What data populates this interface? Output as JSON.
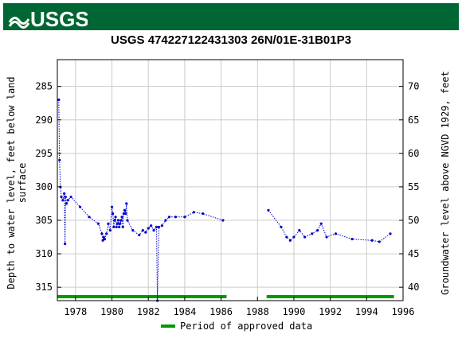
{
  "header": {
    "logo_text": "USGS",
    "banner_color": "#006633"
  },
  "chart_data": {
    "type": "scatter",
    "title": "USGS 474227122431303 26N/01E-31B01P3",
    "ylabel_left_line1": "Depth to water level, feet below land",
    "ylabel_left_line2": "surface",
    "ylabel_right": "Groundwater level above NGVD 1929, feet",
    "xlim": [
      1977.0,
      1996.0
    ],
    "ylim_left": [
      281.0,
      317.0
    ],
    "ylim_right": [
      74.0,
      38.0
    ],
    "x_ticks": [
      "1978",
      "1980",
      "1982",
      "1984",
      "1986",
      "1988",
      "1990",
      "1992",
      "1994",
      "1996"
    ],
    "y_ticks_left": [
      "285",
      "290",
      "295",
      "300",
      "305",
      "310",
      "315"
    ],
    "y_ticks_right": [
      "70",
      "65",
      "60",
      "55",
      "50",
      "45",
      "40"
    ],
    "grid": true,
    "marker_color": "#0000cc",
    "approved_color": "#009900",
    "series": [
      {
        "x": [
          1977.08,
          1977.12,
          1977.17,
          1977.22,
          1977.3,
          1977.38,
          1977.42,
          1977.45,
          1977.5,
          1977.58,
          1977.75,
          1978.25,
          1978.75,
          1979.25,
          1979.45,
          1979.5,
          1979.55,
          1979.6,
          1979.7,
          1979.8,
          1979.9,
          1980.0,
          1980.05,
          1980.1,
          1980.15,
          1980.2,
          1980.25,
          1980.3,
          1980.35,
          1980.4,
          1980.45,
          1980.5,
          1980.55,
          1980.6,
          1980.65,
          1980.7,
          1980.75,
          1980.8,
          1980.85,
          1981.15,
          1981.5,
          1981.7,
          1981.85,
          1982.0,
          1982.15,
          1982.3,
          1982.45,
          1982.5,
          1982.58,
          1982.75,
          1982.95,
          1983.15,
          1983.5,
          1984.0,
          1984.5,
          1985.0,
          1986.1
        ],
        "y": [
          287.0,
          296.0,
          300.0,
          301.5,
          302.0,
          301.0,
          308.5,
          301.5,
          302.5,
          302.0,
          301.5,
          303.0,
          304.5,
          305.5,
          307.0,
          308.0,
          307.5,
          307.8,
          307.0,
          305.5,
          306.5,
          303.0,
          304.0,
          306.0,
          305.0,
          304.5,
          306.0,
          305.5,
          305.0,
          306.0,
          305.5,
          305.0,
          304.5,
          306.0,
          304.0,
          303.5,
          304.0,
          302.5,
          305.0,
          306.5,
          307.2,
          306.5,
          306.8,
          306.2,
          305.8,
          306.5,
          306.0,
          317.0,
          306.0,
          305.8,
          305.0,
          304.5,
          304.5,
          304.5,
          303.8,
          304.0,
          305.0
        ]
      },
      {
        "x": [
          1988.6,
          1989.3,
          1989.6,
          1989.8,
          1990.0,
          1990.3,
          1990.6,
          1991.0,
          1991.3,
          1991.5,
          1991.8,
          1992.3,
          1993.2,
          1994.3,
          1994.7,
          1995.3
        ],
        "y": [
          303.5,
          306.0,
          307.5,
          308.0,
          307.5,
          306.5,
          307.5,
          307.0,
          306.5,
          305.5,
          307.5,
          307.0,
          307.8,
          308.0,
          308.2,
          307.0
        ]
      }
    ],
    "approved_periods": [
      [
        1977.0,
        1986.3
      ],
      [
        1988.5,
        1995.5
      ]
    ],
    "legend": {
      "label": "Period of approved data",
      "placement": "bottom-center"
    }
  }
}
